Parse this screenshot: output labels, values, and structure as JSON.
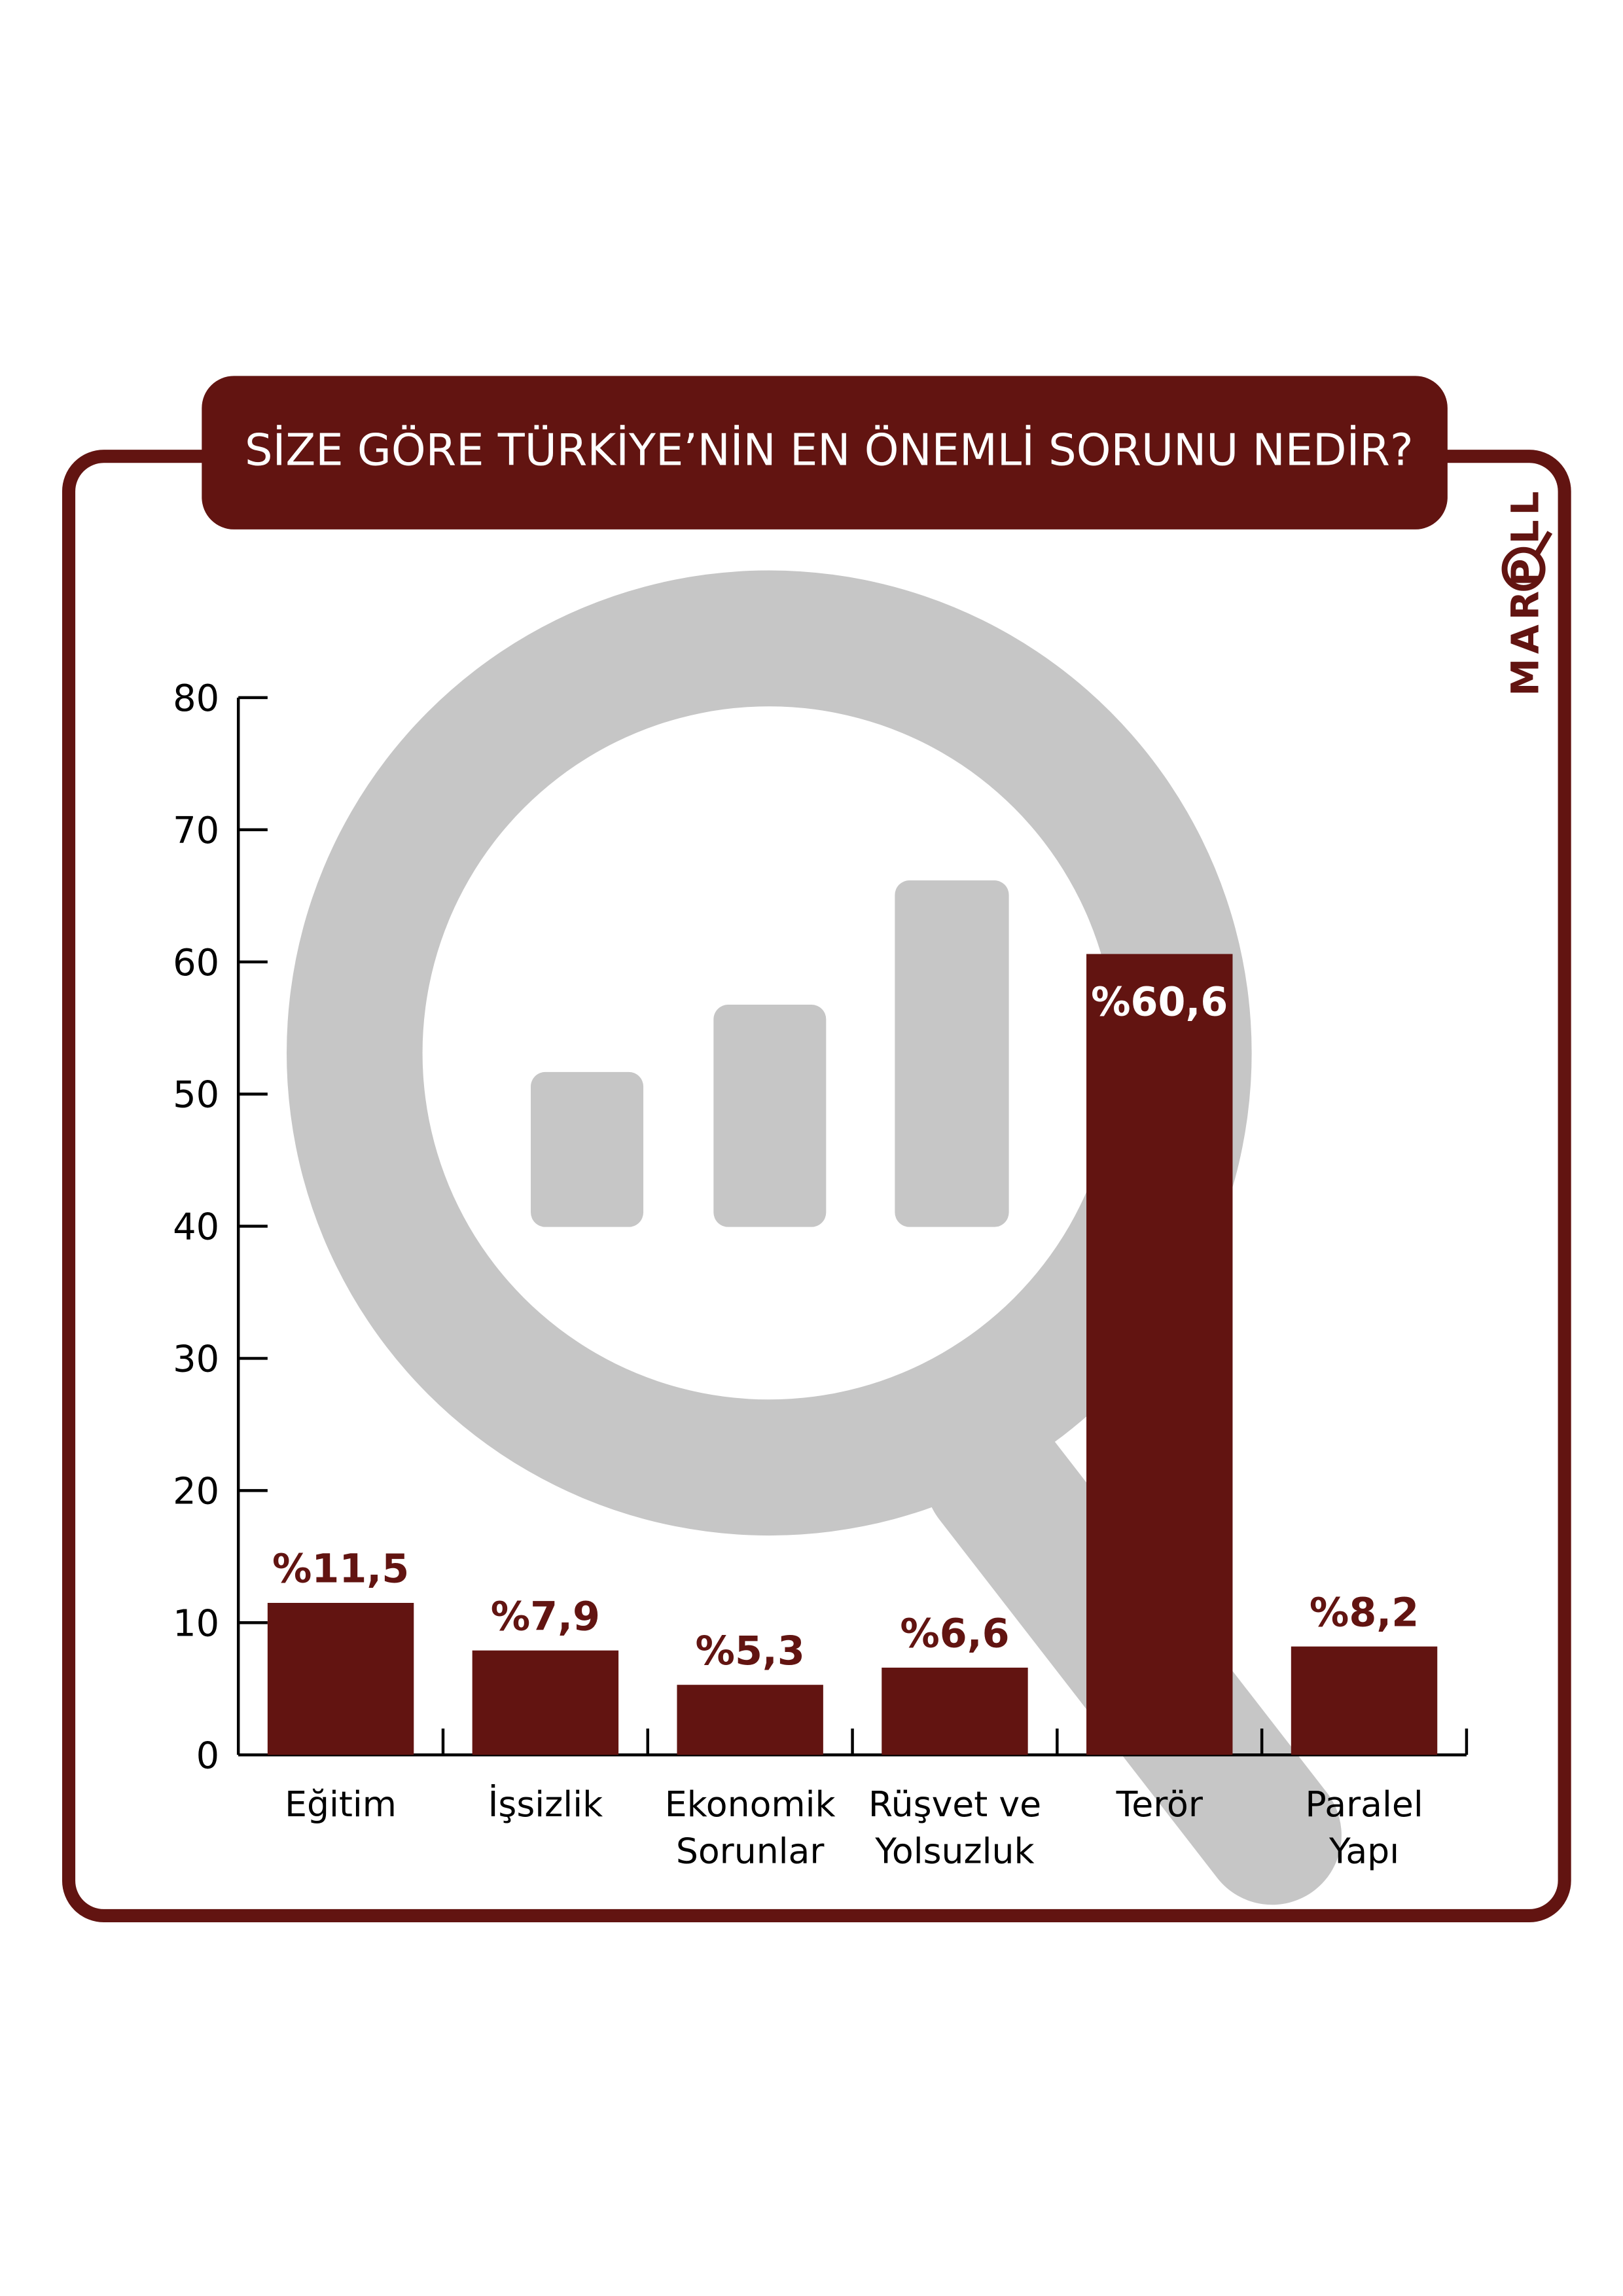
{
  "title": "SİZE GÖRE TÜRKİYE’NİN EN ÖNEMLİ SORUNU NEDİR?",
  "logo": {
    "text": "MARPOLL",
    "icon": "magnifier-bar-chart-icon"
  },
  "background_icon": "magnifier-bar-chart-icon",
  "colors": {
    "accent": "#621411",
    "watermark": "#c6c6c6",
    "text": "#000000",
    "background": "#ffffff"
  },
  "chart_data": {
    "type": "bar",
    "title": "SİZE GÖRE TÜRKİYE’NİN EN ÖNEMLİ SORUNU NEDİR?",
    "categories": [
      [
        "Eğitim"
      ],
      [
        "İşsizlik"
      ],
      [
        "Ekonomik",
        "Sorunlar"
      ],
      [
        "Rüşvet ve",
        "Yolsuzluk"
      ],
      [
        "Terör"
      ],
      [
        "Paralel",
        "Yapı"
      ]
    ],
    "values": [
      11.5,
      7.9,
      5.3,
      6.6,
      60.6,
      8.2
    ],
    "data_labels": [
      "%11,5",
      "%7,9",
      "%5,3",
      "%6,6",
      "%60,6",
      "%8,2"
    ],
    "ylim": [
      0,
      80
    ],
    "yticks": [
      0,
      10,
      20,
      30,
      40,
      50,
      60,
      70,
      80
    ],
    "xlabel": "",
    "ylabel": "",
    "grid": false,
    "legend": "none"
  }
}
